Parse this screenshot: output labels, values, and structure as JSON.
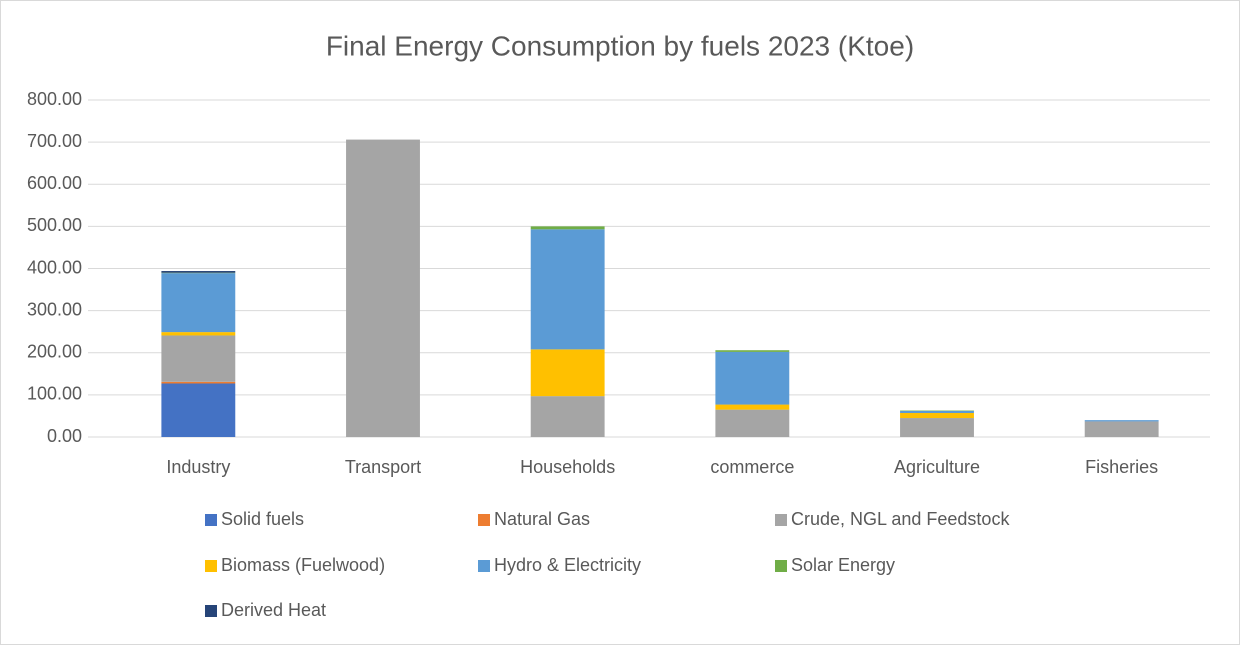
{
  "chart_data": {
    "type": "stacked_bar",
    "title": "Final Energy Consumption by fuels  2023 (Ktoe)",
    "categories": [
      "Industry",
      "Transport",
      "Households",
      "commerce",
      "Agriculture",
      "Fisheries"
    ],
    "series": [
      {
        "name": "Solid fuels",
        "color": "#4472c4",
        "values": [
          127,
          0,
          0,
          0,
          0,
          0
        ]
      },
      {
        "name": "Natural Gas",
        "color": "#ed7d31",
        "values": [
          4,
          0,
          0,
          0,
          0,
          0
        ]
      },
      {
        "name": "Crude, NGL and Feedstock",
        "color": "#a5a5a5",
        "values": [
          110,
          706,
          97,
          65,
          45,
          37
        ]
      },
      {
        "name": "Biomass (Fuelwood)",
        "color": "#ffc000",
        "values": [
          8,
          0,
          111,
          12,
          12,
          0
        ]
      },
      {
        "name": "Hydro & Electricity",
        "color": "#5b9bd5",
        "values": [
          140,
          0,
          285,
          125,
          5,
          3
        ]
      },
      {
        "name": "Solar Energy",
        "color": "#70ad47",
        "values": [
          1,
          0,
          7,
          4,
          1,
          0
        ]
      },
      {
        "name": "Derived Heat",
        "color": "#264478",
        "values": [
          4,
          0,
          0,
          0,
          0,
          0
        ]
      }
    ],
    "ylim": [
      0,
      800
    ],
    "yticks": [
      {
        "value": 0,
        "label": "0.00"
      },
      {
        "value": 100,
        "label": "100.00"
      },
      {
        "value": 200,
        "label": "200.00"
      },
      {
        "value": 300,
        "label": "300.00"
      },
      {
        "value": 400,
        "label": "400.00"
      },
      {
        "value": 500,
        "label": "500.00"
      },
      {
        "value": 600,
        "label": "600.00"
      },
      {
        "value": 700,
        "label": "700.00"
      },
      {
        "value": 800,
        "label": "800.00"
      }
    ],
    "grid": true,
    "legend": "bottom"
  }
}
